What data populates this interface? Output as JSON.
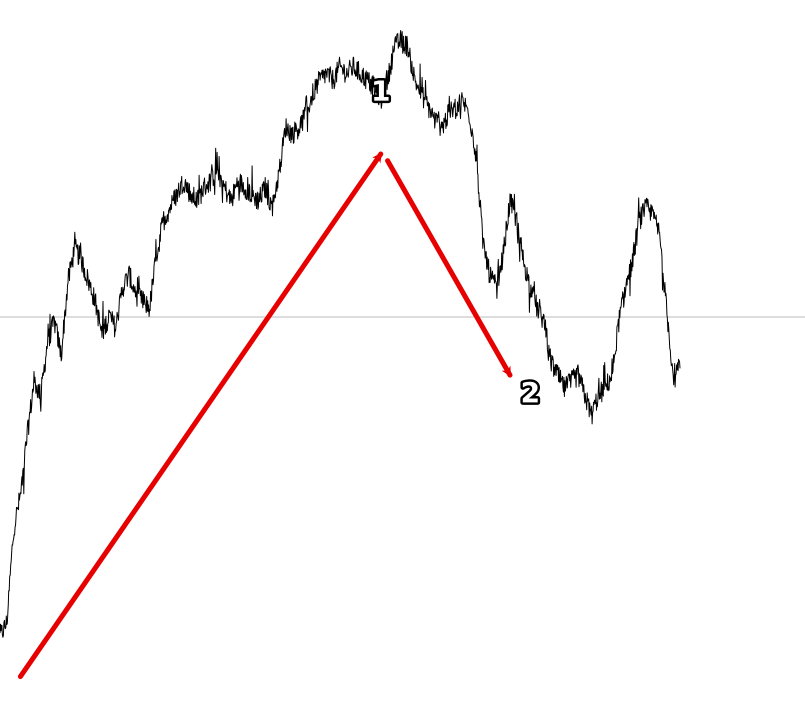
{
  "chart_data": {
    "type": "line",
    "title": "",
    "xlabel": "",
    "ylabel": "",
    "grid": false,
    "reference_line": {
      "y": 50,
      "color": "#bbbbbb"
    },
    "xlim": [
      0,
      100
    ],
    "ylim": [
      0,
      100
    ],
    "series": [
      {
        "color": "#000000",
        "anchors": [
          [
            0,
            8
          ],
          [
            1,
            10
          ],
          [
            2,
            24
          ],
          [
            3,
            29
          ],
          [
            4,
            38
          ],
          [
            5,
            46
          ],
          [
            6,
            44
          ],
          [
            7,
            52
          ],
          [
            8,
            55
          ],
          [
            9,
            50
          ],
          [
            10,
            61
          ],
          [
            11,
            66
          ],
          [
            12,
            64
          ],
          [
            13,
            61
          ],
          [
            14,
            58
          ],
          [
            15,
            53
          ],
          [
            16,
            56
          ],
          [
            17,
            54
          ],
          [
            18,
            60
          ],
          [
            19,
            62
          ],
          [
            20,
            59
          ],
          [
            21,
            58
          ],
          [
            22,
            57
          ],
          [
            23,
            65
          ],
          [
            24,
            70
          ],
          [
            25,
            72
          ],
          [
            26,
            74
          ],
          [
            27,
            76
          ],
          [
            28,
            74
          ],
          [
            29,
            73
          ],
          [
            30,
            75
          ],
          [
            31,
            76
          ],
          [
            32,
            78
          ],
          [
            33,
            75
          ],
          [
            34,
            73
          ],
          [
            35,
            76
          ],
          [
            36,
            75
          ],
          [
            37,
            74
          ],
          [
            38,
            73
          ],
          [
            39,
            75
          ],
          [
            40,
            72
          ],
          [
            41,
            77
          ],
          [
            42,
            84
          ],
          [
            43,
            83
          ],
          [
            44,
            84
          ],
          [
            45,
            86
          ],
          [
            46,
            89
          ],
          [
            47,
            91
          ],
          [
            48,
            92
          ],
          [
            49,
            91
          ],
          [
            50,
            93
          ],
          [
            51,
            92
          ],
          [
            52,
            93
          ],
          [
            53,
            92
          ],
          [
            54,
            91
          ],
          [
            55,
            90
          ],
          [
            56,
            88
          ],
          [
            57,
            91
          ],
          [
            58,
            96
          ],
          [
            59,
            97
          ],
          [
            60,
            96
          ],
          [
            61,
            91
          ],
          [
            62,
            89
          ],
          [
            63,
            87
          ],
          [
            64,
            85
          ],
          [
            65,
            84
          ],
          [
            66,
            86
          ],
          [
            67,
            87
          ],
          [
            68,
            88
          ],
          [
            69,
            86
          ],
          [
            70,
            80
          ],
          [
            71,
            67
          ],
          [
            72,
            62
          ],
          [
            73,
            60
          ],
          [
            74,
            65
          ],
          [
            75,
            73
          ],
          [
            76,
            70
          ],
          [
            77,
            64
          ],
          [
            78,
            60
          ],
          [
            79,
            57
          ],
          [
            80,
            55
          ],
          [
            81,
            49
          ],
          [
            82,
            47
          ],
          [
            83,
            45
          ],
          [
            84,
            46
          ],
          [
            85,
            47
          ],
          [
            86,
            44
          ],
          [
            87,
            41
          ],
          [
            88,
            44
          ],
          [
            89,
            45
          ],
          [
            90,
            47
          ],
          [
            91,
            55
          ],
          [
            92,
            60
          ],
          [
            93,
            64
          ],
          [
            94,
            70
          ],
          [
            95,
            72
          ],
          [
            96,
            71
          ],
          [
            97,
            68
          ],
          [
            98,
            57
          ],
          [
            99,
            47
          ],
          [
            100,
            48
          ]
        ]
      }
    ],
    "annotations": [
      {
        "label": "1",
        "x": 56,
        "y": 88,
        "arrow_from": [
          3,
          2
        ],
        "arrow_to": [
          56,
          80
        ],
        "color": "#e60000"
      },
      {
        "label": "2",
        "x": 78,
        "y": 43,
        "arrow_from": [
          57,
          79
        ],
        "arrow_to": [
          75,
          47
        ],
        "color": "#e60000"
      }
    ]
  }
}
